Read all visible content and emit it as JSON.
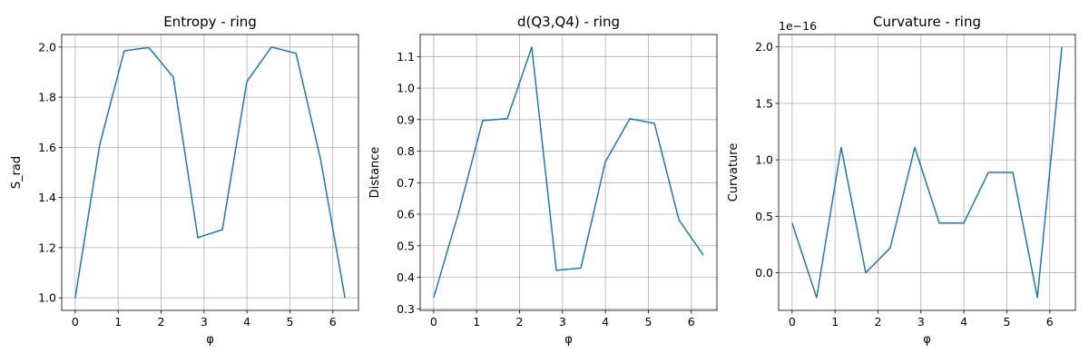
{
  "chart_data": [
    {
      "type": "line",
      "title": "Entropy - ring",
      "xlabel": "φ",
      "ylabel": "S_rad",
      "x": [
        0,
        0.571,
        1.142,
        1.714,
        2.285,
        2.856,
        3.427,
        3.998,
        4.57,
        5.141,
        5.712,
        6.283
      ],
      "series": [
        {
          "values": [
            1.0,
            1.61,
            1.985,
            1.998,
            1.88,
            1.24,
            1.272,
            1.862,
            2.0,
            1.975,
            1.555,
            1.0
          ]
        }
      ],
      "xlim": [
        -0.314,
        6.597
      ],
      "ylim": [
        0.95,
        2.05
      ],
      "xticks": [
        0,
        1,
        2,
        3,
        4,
        5,
        6
      ],
      "yticks": [
        1.0,
        1.2,
        1.4,
        1.6,
        1.8,
        2.0
      ],
      "ytick_labels": [
        "1.0",
        "1.2",
        "1.4",
        "1.6",
        "1.8",
        "2.0"
      ],
      "offset_text": "",
      "grid": true,
      "color": "#1f77b4"
    },
    {
      "type": "line",
      "title": "d(Q3,Q4) - ring",
      "xlabel": "φ",
      "ylabel": "Distance",
      "x": [
        0,
        0.571,
        1.142,
        1.714,
        2.285,
        2.856,
        3.427,
        3.998,
        4.57,
        5.141,
        5.712,
        6.283
      ],
      "series": [
        {
          "values": [
            0.335,
            0.6,
            0.897,
            0.903,
            1.13,
            0.422,
            0.429,
            0.766,
            0.903,
            0.888,
            0.582,
            0.47
          ]
        }
      ],
      "xlim": [
        -0.314,
        6.597
      ],
      "ylim": [
        0.295,
        1.17
      ],
      "xticks": [
        0,
        1,
        2,
        3,
        4,
        5,
        6
      ],
      "yticks": [
        0.3,
        0.4,
        0.5,
        0.6,
        0.7,
        0.8,
        0.9,
        1.0,
        1.1
      ],
      "ytick_labels": [
        "0.3",
        "0.4",
        "0.5",
        "0.6",
        "0.7",
        "0.8",
        "0.9",
        "1.0",
        "1.1"
      ],
      "offset_text": "",
      "grid": true,
      "color": "#1f77b4"
    },
    {
      "type": "line",
      "title": "Curvature - ring",
      "xlabel": "φ",
      "ylabel": "Curvature",
      "x": [
        0,
        0.571,
        1.142,
        1.714,
        2.285,
        2.856,
        3.427,
        3.998,
        4.57,
        5.141,
        5.712,
        6.283
      ],
      "series": [
        {
          "values": [
            0.44,
            -0.22,
            1.11,
            0.0,
            0.22,
            1.11,
            0.44,
            0.44,
            0.888,
            0.888,
            -0.22,
            2.0
          ]
        }
      ],
      "xlim": [
        -0.314,
        6.597
      ],
      "ylim": [
        -0.333,
        2.11
      ],
      "xticks": [
        0,
        1,
        2,
        3,
        4,
        5,
        6
      ],
      "yticks": [
        0.0,
        0.5,
        1.0,
        1.5,
        2.0
      ],
      "ytick_labels": [
        "0.0",
        "0.5",
        "1.0",
        "1.5",
        "2.0"
      ],
      "offset_text": "1e−16",
      "grid": true,
      "color": "#1f77b4"
    }
  ]
}
